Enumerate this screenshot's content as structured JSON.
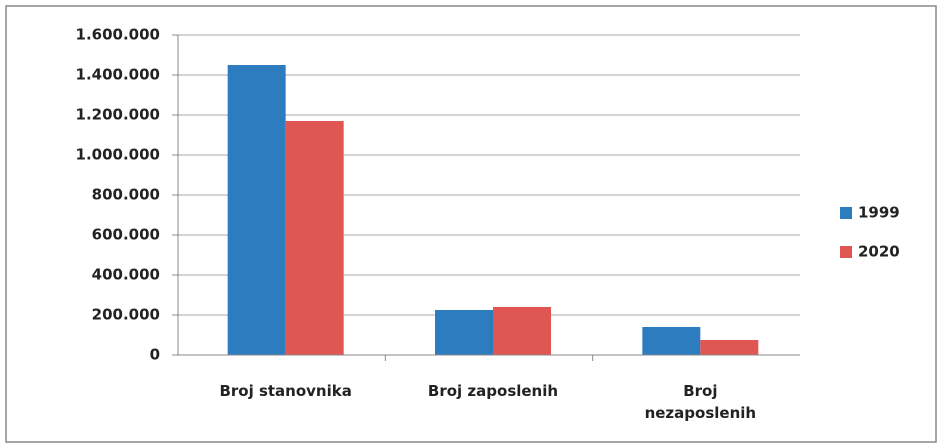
{
  "chart_data": {
    "type": "bar",
    "categories": [
      "Broj stanovnika",
      "Broj zaposlenih",
      "Broj nezaposlenih"
    ],
    "series": [
      {
        "name": "1999",
        "color": "#2e7cc0",
        "values": [
          1450000,
          225000,
          140000
        ]
      },
      {
        "name": "2020",
        "color": "#e05653",
        "values": [
          1170000,
          240000,
          75000
        ]
      }
    ],
    "ylim": [
      0,
      1600000
    ],
    "yticks": [
      0,
      {
        "value": 200000,
        "label": "200.000"
      },
      {
        "value": 400000,
        "label": "400.000"
      },
      {
        "value": 600000,
        "label": "600.000"
      },
      {
        "value": 800000,
        "label": "800.000"
      },
      {
        "value": 1000000,
        "label": "1.000.000"
      },
      {
        "value": 1200000,
        "label": "1.200.000"
      },
      {
        "value": 1400000,
        "label": "1.400.000"
      },
      {
        "value": 1600000,
        "label": "1.600.000"
      }
    ],
    "grid": true,
    "legend": "right"
  }
}
